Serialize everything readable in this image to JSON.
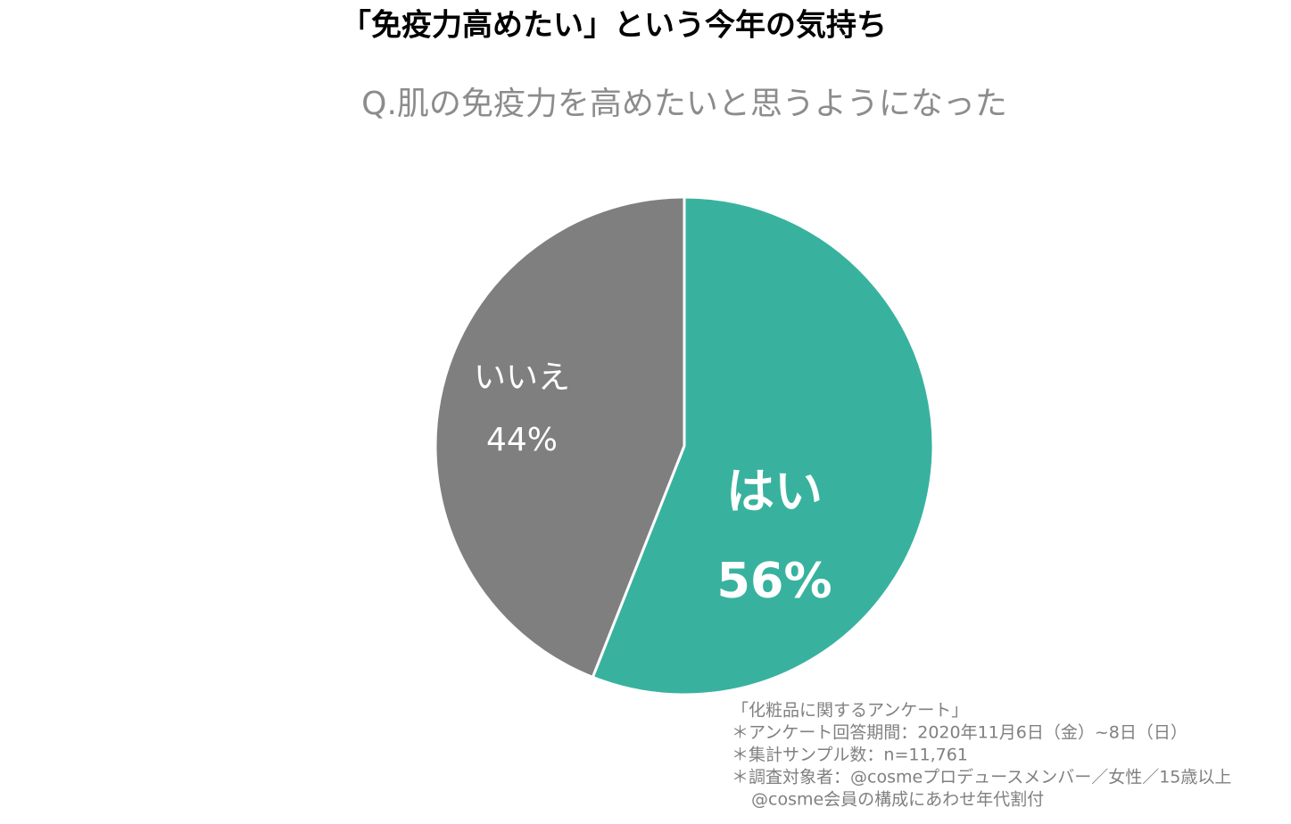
{
  "chart_data": {
    "type": "pie",
    "title": "「免疫力高めたい」という今年の気持ち",
    "subtitle": "Q.肌の免疫力を高めたいと思うようになった",
    "categories": [
      "はい",
      "いいえ"
    ],
    "values": [
      56,
      44
    ],
    "value_labels": [
      "56%",
      "44%"
    ],
    "colors": [
      "#38b29e",
      "#7f7f7f"
    ],
    "notes": [
      "「化粧品に関するアンケート」",
      "＊アンケート回答期間：2020年11月6日（金）~8日（日）",
      "＊集計サンプル数：n=11,761",
      "＊調査対象者：@cosmeプロデュースメンバー／女性／15歳以上",
      "@cosme会員の構成にあわせ年代割付"
    ]
  }
}
